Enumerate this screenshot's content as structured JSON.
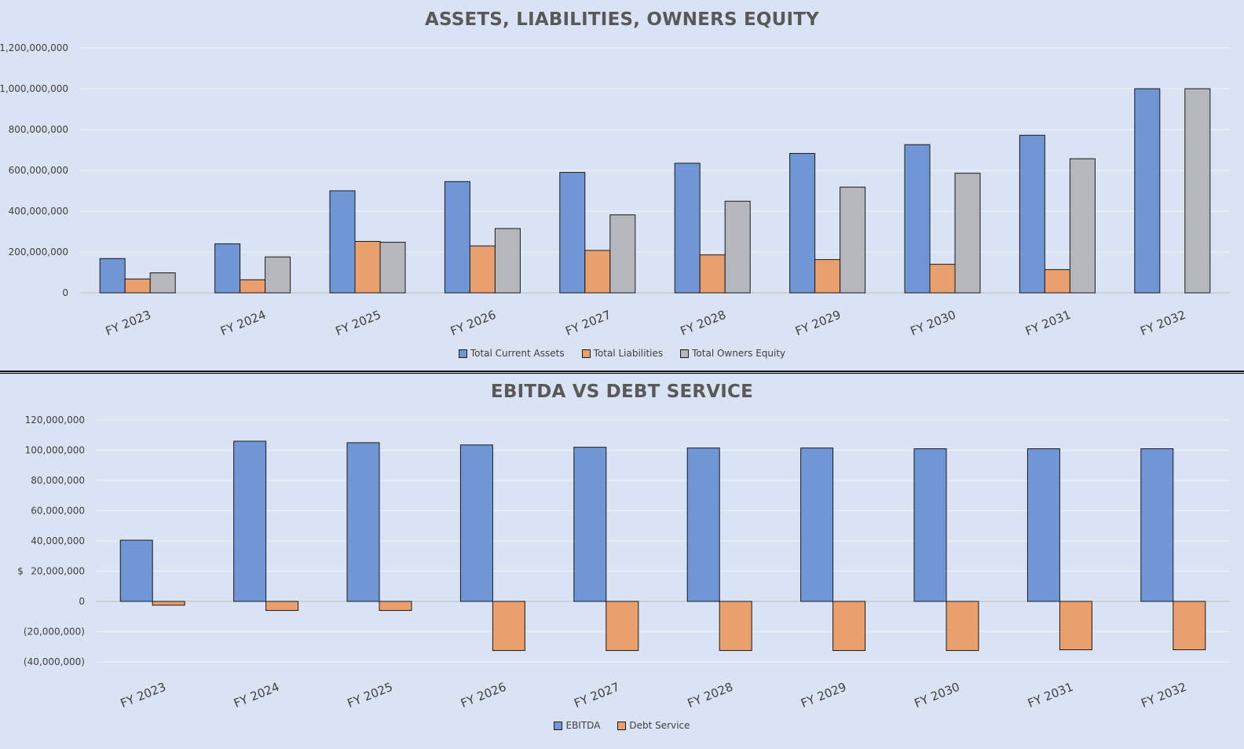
{
  "chart_data": [
    {
      "type": "bar",
      "title": "ASSETS, LIABILITIES, OWNERS EQUITY",
      "xlabel": "",
      "ylabel": "",
      "ylim": [
        0,
        1200000000
      ],
      "yticks": [
        "0",
        "200,000,000",
        "400,000,000",
        "600,000,000",
        "800,000,000",
        "1,000,000,000",
        "1,200,000,000"
      ],
      "categories": [
        "FY 2023",
        "FY 2024",
        "FY 2025",
        "FY 2026",
        "FY 2027",
        "FY 2028",
        "FY 2029",
        "FY 2030",
        "FY 2031",
        "FY 2032"
      ],
      "series": [
        {
          "name": "Total Current Assets",
          "color": "#7096d5",
          "values": [
            168000000,
            240000000,
            500000000,
            545000000,
            590000000,
            635000000,
            683000000,
            726000000,
            772000000,
            1000000000
          ]
        },
        {
          "name": "Total Liabilities",
          "color": "#e9a06c",
          "values": [
            68000000,
            64000000,
            252000000,
            230000000,
            208000000,
            186000000,
            163000000,
            140000000,
            114000000,
            0
          ]
        },
        {
          "name": "Total Owners Equity",
          "color": "#b4b8bc",
          "values": [
            98000000,
            176000000,
            248000000,
            315000000,
            382000000,
            449000000,
            518000000,
            586000000,
            657000000,
            1000000000
          ]
        }
      ],
      "grid": true,
      "legend_position": "bottom"
    },
    {
      "type": "bar",
      "title": "EBITDA VS DEBT SERVICE",
      "xlabel": "",
      "ylabel": "$",
      "ylim": [
        -40000000,
        120000000
      ],
      "yticks": [
        "(40,000,000)",
        "(20,000,000)",
        "0",
        "20,000,000",
        "40,000,000",
        "60,000,000",
        "80,000,000",
        "100,000,000",
        "120,000,000"
      ],
      "categories": [
        "FY 2023",
        "FY 2024",
        "FY 2025",
        "FY 2026",
        "FY 2027",
        "FY 2028",
        "FY 2029",
        "FY 2030",
        "FY 2031",
        "FY 2032"
      ],
      "series": [
        {
          "name": "EBITDA",
          "color": "#7096d5",
          "values": [
            40500000,
            106000000,
            105000000,
            103500000,
            102000000,
            101500000,
            101500000,
            101000000,
            101000000,
            101000000
          ]
        },
        {
          "name": "Debt Service",
          "color": "#e9a06c",
          "values": [
            -2500000,
            -6000000,
            -6000000,
            -32500000,
            -32500000,
            -32500000,
            -32500000,
            -32500000,
            -32000000,
            -32000000
          ]
        }
      ],
      "grid": true,
      "legend_position": "bottom"
    }
  ]
}
